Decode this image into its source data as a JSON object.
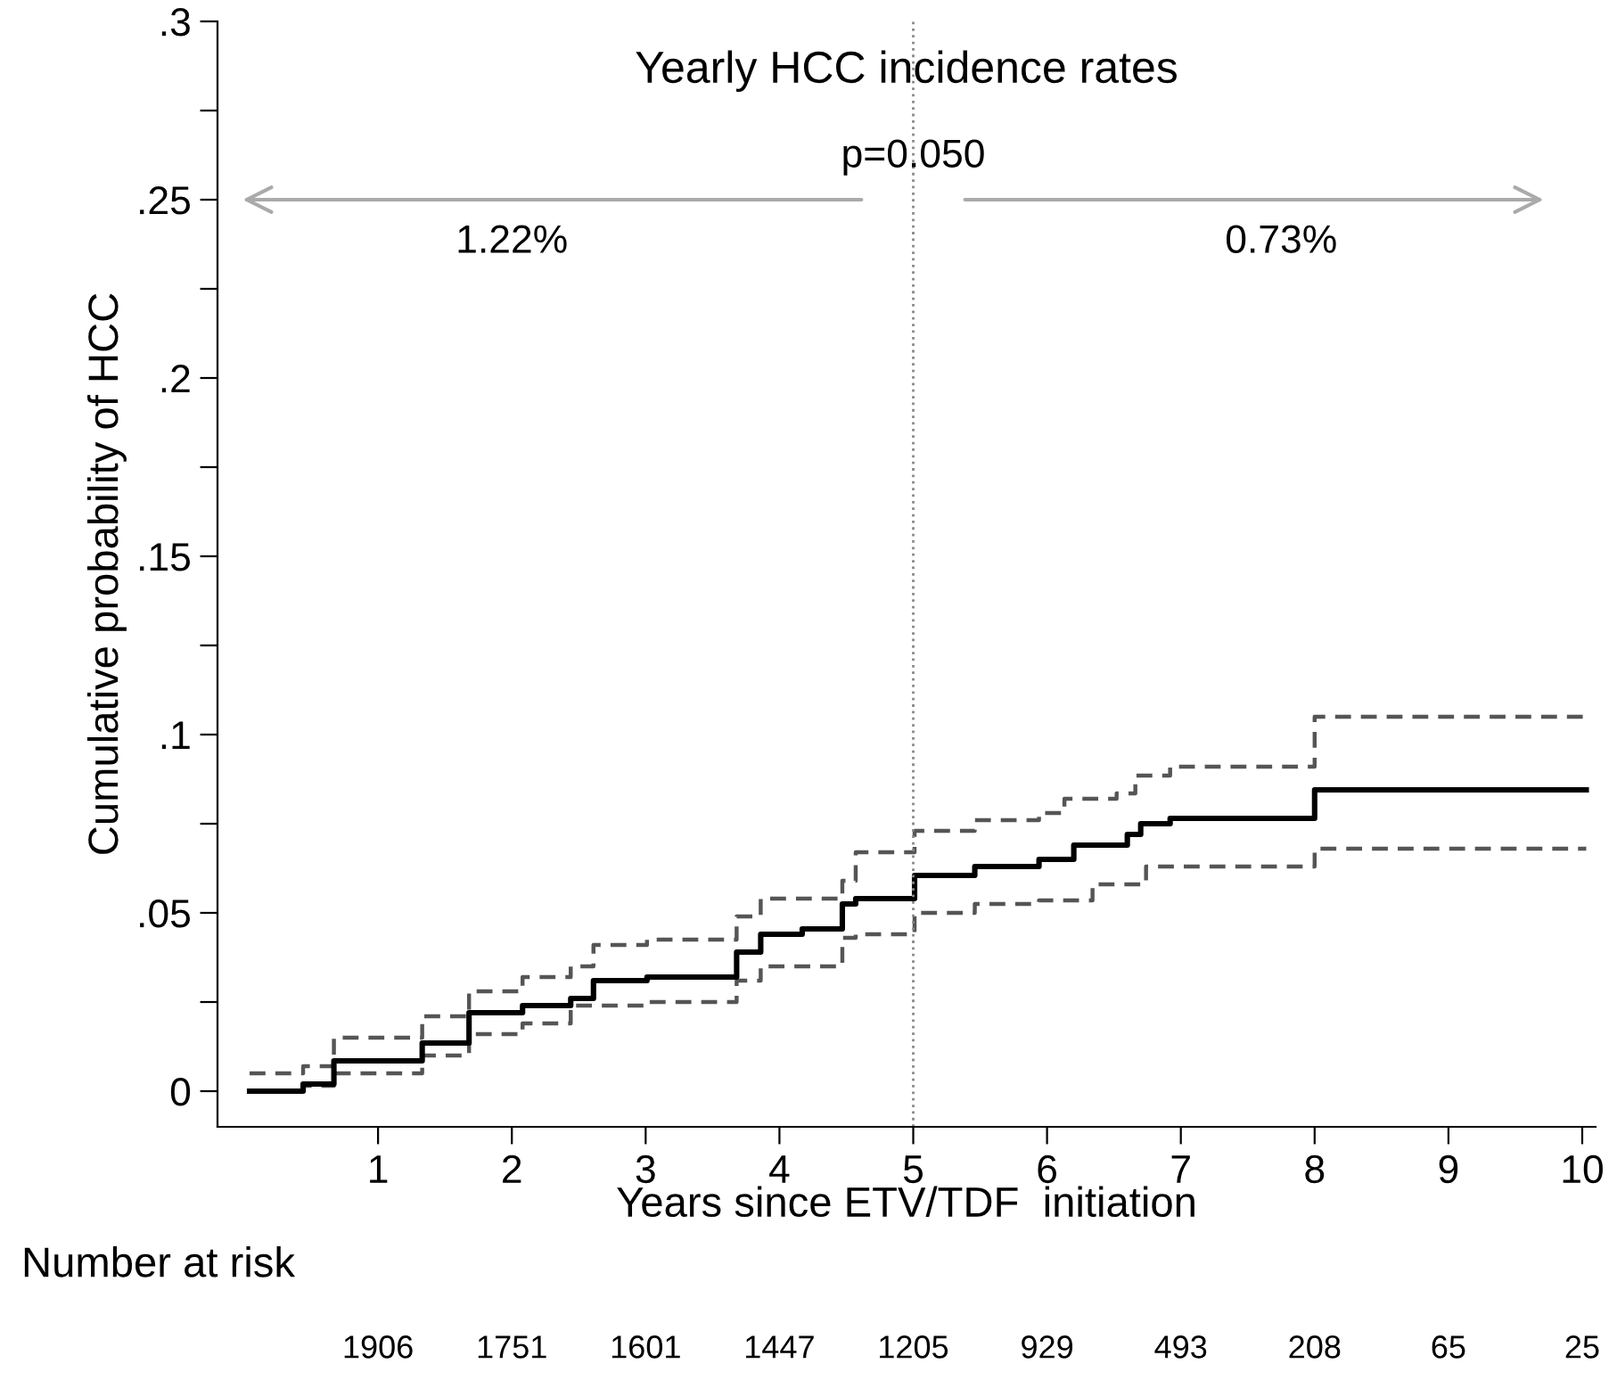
{
  "chart_data": {
    "type": "step",
    "title": "Yearly HCC incidence rates",
    "xlabel": "Years since ETV/TDF  initiation",
    "ylabel": "Cumulative probability of HCC",
    "series": [
      {
        "color": "#555555",
        "line_style": "dashed",
        "x": [
          0.04,
          0.44,
          0.67,
          1.33,
          1.68,
          2.08,
          2.44,
          2.61,
          3.01,
          3.68,
          3.86,
          4.47,
          4.57,
          5.01,
          5.46,
          5.94,
          6.13,
          6.52,
          6.66,
          6.92,
          8.0,
          10.03
        ],
        "values": [
          0.005,
          0.007,
          0.015,
          0.021,
          0.028,
          0.032,
          0.035,
          0.041,
          0.0425,
          0.049,
          0.054,
          0.059,
          0.067,
          0.073,
          0.076,
          0.078,
          0.082,
          0.0835,
          0.0885,
          0.091,
          0.105,
          0.105
        ]
      },
      {
        "color": "#555555",
        "line_style": "dashed",
        "x": [
          0.04,
          0.44,
          0.67,
          1.33,
          1.68,
          2.08,
          2.44,
          3.01,
          3.68,
          3.86,
          4.47,
          4.57,
          5.01,
          5.46,
          5.94,
          6.34,
          6.74,
          8.0,
          10.03
        ],
        "values": [
          0.0,
          0.0015,
          0.005,
          0.01,
          0.016,
          0.019,
          0.024,
          0.025,
          0.031,
          0.035,
          0.043,
          0.044,
          0.05,
          0.0525,
          0.0535,
          0.058,
          0.063,
          0.068,
          0.068
        ]
      },
      {
        "color": "#000000",
        "line_style": "solid",
        "x": [
          0.04,
          0.44,
          0.67,
          1.33,
          1.68,
          2.08,
          2.44,
          2.61,
          3.01,
          3.68,
          3.86,
          4.17,
          4.47,
          4.57,
          5.01,
          5.46,
          5.94,
          6.2,
          6.6,
          6.7,
          6.92,
          8.0,
          10.03
        ],
        "values": [
          0.0,
          0.002,
          0.0085,
          0.0135,
          0.022,
          0.024,
          0.026,
          0.031,
          0.032,
          0.039,
          0.044,
          0.0455,
          0.0525,
          0.054,
          0.0605,
          0.063,
          0.065,
          0.069,
          0.072,
          0.075,
          0.0765,
          0.0845,
          0.0845
        ]
      }
    ],
    "xlim": [
      -0.2,
      10.1
    ],
    "xticks": [
      1,
      2,
      3,
      4,
      5,
      6,
      7,
      8,
      9,
      10
    ],
    "ylim": [
      -0.01,
      0.3
    ],
    "yticks": [
      {
        "value": 0,
        "label": "0"
      },
      {
        "value": 0.025,
        "label": null
      },
      {
        "value": 0.05,
        "label": ".05"
      },
      {
        "value": 0.075,
        "label": null
      },
      {
        "value": 0.1,
        "label": ".1"
      },
      {
        "value": 0.125,
        "label": null
      },
      {
        "value": 0.15,
        "label": ".15"
      },
      {
        "value": 0.175,
        "label": null
      },
      {
        "value": 0.2,
        "label": ".2"
      },
      {
        "value": 0.225,
        "label": null
      },
      {
        "value": 0.25,
        "label": ".25"
      },
      {
        "value": 0.275,
        "label": null
      },
      {
        "value": 0.3,
        "label": ".3"
      }
    ],
    "ref_lines": [
      {
        "axis": "x",
        "value": 5,
        "color": "#888888",
        "line_style": "dotted"
      }
    ],
    "annotations": [
      "p=0.050",
      "1.22%",
      "0.73%",
      "Number at risk",
      "1906",
      "1751",
      "1601",
      "1447",
      "1205",
      "929",
      "493",
      "208",
      "65",
      "25"
    ],
    "grid": false
  }
}
